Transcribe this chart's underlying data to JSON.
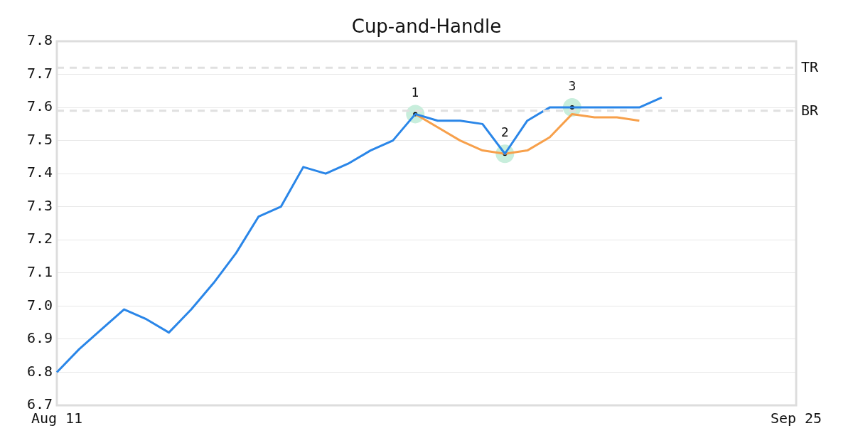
{
  "chart_data": {
    "type": "line",
    "title": "Cup-and-Handle",
    "categories": [
      "Aug 11",
      null,
      null,
      null,
      null,
      null,
      null,
      null,
      null,
      null,
      null,
      null,
      null,
      null,
      null,
      null,
      null,
      null,
      null,
      null,
      null,
      null,
      null,
      null,
      null,
      null,
      null,
      null,
      null,
      null,
      null,
      null,
      null,
      "Sep 25"
    ],
    "series": [
      {
        "color": "#2a86e8",
        "values": [
          6.8,
          6.87,
          6.93,
          6.99,
          6.96,
          6.92,
          6.99,
          7.07,
          7.16,
          7.27,
          7.3,
          7.42,
          7.4,
          7.43,
          7.47,
          7.5,
          7.58,
          7.56,
          7.56,
          7.55,
          7.46,
          7.56,
          7.6,
          7.6,
          7.6,
          7.6,
          7.6,
          7.63,
          null,
          null,
          null,
          null,
          null,
          null
        ]
      },
      {
        "color": "#f7a04b",
        "values": [
          null,
          null,
          null,
          null,
          null,
          null,
          null,
          null,
          null,
          null,
          null,
          null,
          null,
          null,
          null,
          null,
          7.58,
          7.54,
          7.5,
          7.47,
          7.46,
          7.47,
          7.51,
          7.58,
          7.57,
          7.57,
          7.56,
          null,
          null,
          null,
          null,
          null,
          null,
          null
        ]
      },
      {
        "type": "scatter",
        "marker": "circle",
        "color": "#c8eedc",
        "values": [
          null,
          null,
          null,
          null,
          null,
          null,
          null,
          null,
          null,
          null,
          null,
          null,
          null,
          null,
          null,
          null,
          7.58,
          null,
          null,
          null,
          7.46,
          null,
          null,
          7.6,
          null,
          null,
          null,
          null,
          null,
          null,
          null,
          null,
          null,
          null
        ]
      }
    ],
    "annotations": [
      "1",
      "2",
      "3"
    ],
    "ylim": [
      6.7,
      7.8
    ],
    "yticks": [
      6.7,
      6.8,
      6.9,
      {
        "value": 7,
        "label": "7.0"
      },
      7.1,
      7.2,
      7.3,
      7.4,
      7.5,
      7.6,
      7.7,
      7.8
    ],
    "ref_lines": [
      {
        "axis": "y",
        "value": 7.72,
        "label": "TR",
        "color": "#e0e0e0",
        "line_style": "dashed"
      },
      {
        "axis": "y",
        "value": 7.59,
        "label": "BR",
        "color": "#e0e0e0",
        "line_style": "dashed"
      }
    ],
    "grid": "y",
    "legend": false,
    "marker": "none",
    "line_style": "solid"
  }
}
